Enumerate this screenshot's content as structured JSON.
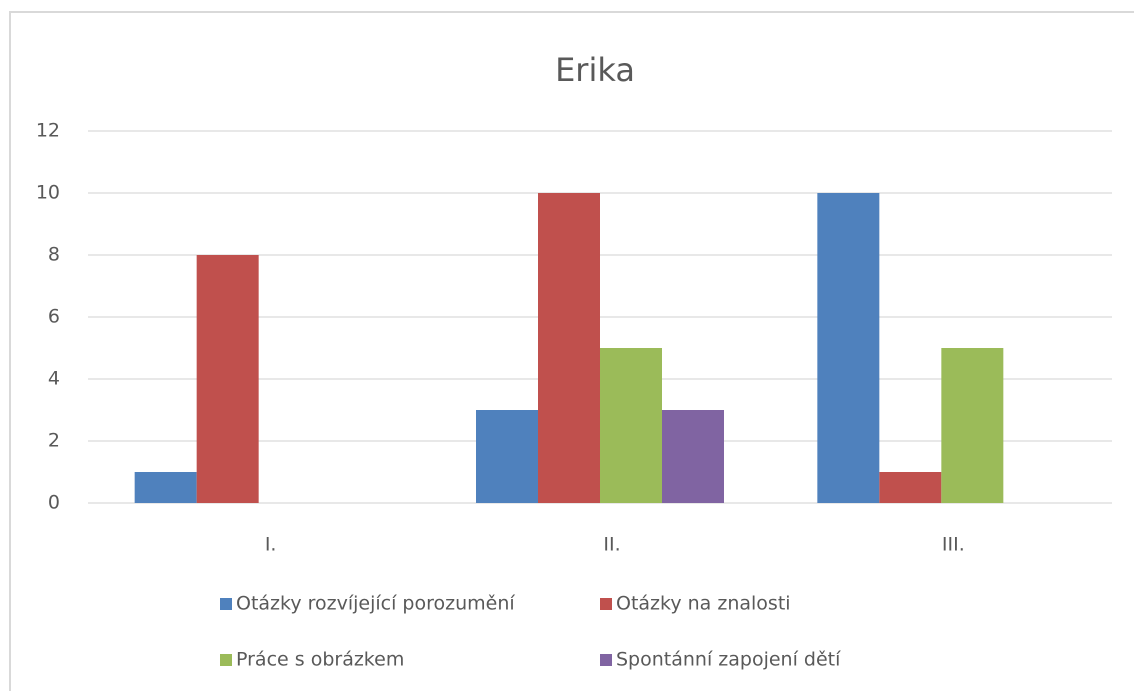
{
  "chart_data": {
    "type": "bar",
    "title": "Erika",
    "categories": [
      "I.",
      "II.",
      "III."
    ],
    "series": [
      {
        "name": "Otázky rozvíjející porozumění",
        "color": "#4f81bd",
        "values": [
          1,
          3,
          10
        ]
      },
      {
        "name": "Otázky na znalosti",
        "color": "#c0504d",
        "values": [
          8,
          10,
          1
        ]
      },
      {
        "name": "Práce s obrázkem",
        "color": "#9bbb59",
        "values": [
          0,
          5,
          5
        ]
      },
      {
        "name": "Spontánní zapojení dětí",
        "color": "#8064a2",
        "values": [
          0,
          3,
          0
        ]
      }
    ],
    "ylim": [
      0,
      12
    ],
    "yticks": [
      0,
      2,
      4,
      6,
      8,
      10,
      12
    ],
    "grid": true,
    "legend": "bottom"
  }
}
